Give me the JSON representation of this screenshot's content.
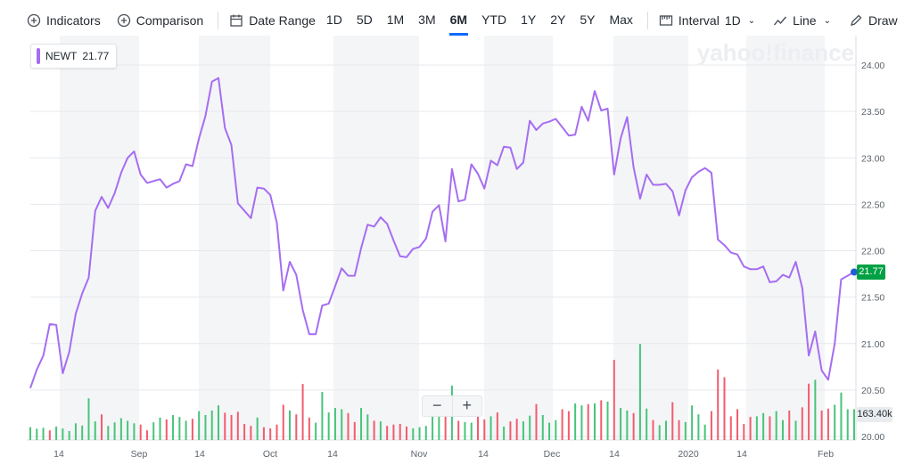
{
  "toolbar": {
    "indicators": "Indicators",
    "comparison": "Comparison",
    "date_range": "Date Range",
    "ranges": [
      "1D",
      "5D",
      "1M",
      "3M",
      "6M",
      "YTD",
      "1Y",
      "2Y",
      "5Y",
      "Max"
    ],
    "active_range": "6M",
    "interval_label": "Interval",
    "interval_value": "1D",
    "line_label": "Line",
    "draw_label": "Draw"
  },
  "legend": {
    "symbol": "NEWT",
    "value": "21.77"
  },
  "watermark": "yahoo!finance",
  "price_badge": "21.77",
  "volume_badge": "163.40k",
  "zoom": {
    "minus": "−",
    "plus": "+"
  },
  "colors": {
    "line": "#a66df2",
    "volume_up": "#48c47a",
    "volume_down": "#f25c6e",
    "price_badge": "#00a144",
    "accent": "#0f69ff"
  },
  "chart_data": {
    "type": "line",
    "series": [
      {
        "values": [
          20.52,
          20.72,
          20.87,
          21.21,
          21.2,
          20.68,
          20.91,
          21.32,
          21.54,
          21.71,
          22.43,
          22.58,
          22.46,
          22.62,
          22.84,
          23.0,
          23.07,
          22.82,
          22.73,
          22.75,
          22.77,
          22.68,
          22.72,
          22.75,
          22.93,
          22.91,
          23.21,
          23.45,
          23.82,
          23.86,
          23.32,
          23.14,
          22.51,
          22.43,
          22.35,
          22.68,
          22.67,
          22.6,
          22.3,
          21.57,
          21.88,
          21.74,
          21.36,
          21.1,
          21.1,
          21.41,
          21.43,
          21.62,
          21.81,
          21.73,
          21.73,
          22.03,
          22.28,
          22.26,
          22.36,
          22.29,
          22.11,
          21.94,
          21.93,
          22.02,
          22.04,
          22.13,
          22.42,
          22.49,
          22.1,
          22.88,
          22.53,
          22.55,
          22.93,
          22.83,
          22.67,
          22.97,
          22.92,
          23.12,
          23.11,
          22.88,
          22.95,
          23.4,
          23.3,
          23.37,
          23.39,
          23.42,
          23.33,
          23.24,
          23.25,
          23.55,
          23.4,
          23.72,
          23.51,
          23.53,
          22.82,
          23.21,
          23.44,
          22.9,
          22.56,
          22.82,
          22.71,
          22.71,
          22.72,
          22.64,
          22.38,
          22.65,
          22.79,
          22.85,
          22.89,
          22.84,
          22.12,
          22.06,
          21.98,
          21.96,
          21.83,
          21.8,
          21.8,
          21.83,
          21.66,
          21.67,
          21.74,
          21.71,
          21.88,
          21.6,
          20.87,
          21.13,
          20.71,
          20.61,
          21.0,
          21.69,
          21.73,
          21.77
        ],
        "volume_k": [
          40,
          35,
          38,
          30,
          42,
          36,
          28,
          52,
          45,
          130,
          58,
          80,
          44,
          55,
          68,
          60,
          52,
          48,
          30,
          55,
          70,
          64,
          78,
          72,
          60,
          66,
          90,
          78,
          92,
          108,
          85,
          78,
          88,
          50,
          44,
          70,
          40,
          36,
          48,
          110,
          92,
          80,
          175,
          70,
          54,
          150,
          86,
          100,
          96,
          84,
          56,
          100,
          80,
          60,
          58,
          44,
          48,
          50,
          42,
          36,
          40,
          44,
          82,
          74,
          96,
          170,
          60,
          56,
          54,
          80,
          64,
          74,
          86,
          42,
          58,
          66,
          58,
          76,
          112,
          78,
          54,
          62,
          96,
          90,
          114,
          108,
          112,
          114,
          124,
          120,
          250,
          100,
          92,
          84,
          300,
          98,
          62,
          46,
          60,
          118,
          62,
          56,
          108,
          80,
          48,
          90,
          220,
          196,
          74,
          96,
          50,
          72,
          74,
          84,
          74,
          90,
          62,
          92,
          60,
          102,
          176,
          188,
          92,
          98,
          110,
          148,
          96,
          96
        ],
        "volume_up": [
          1,
          1,
          1,
          0,
          1,
          1,
          1,
          1,
          1,
          1,
          1,
          0,
          1,
          1,
          1,
          1,
          1,
          0,
          0,
          1,
          1,
          0,
          1,
          1,
          1,
          0,
          1,
          1,
          1,
          1,
          0,
          0,
          0,
          0,
          0,
          1,
          0,
          0,
          0,
          0,
          1,
          0,
          0,
          0,
          1,
          1,
          1,
          1,
          1,
          0,
          0,
          1,
          1,
          0,
          1,
          0,
          0,
          0,
          0,
          1,
          1,
          1,
          1,
          1,
          0,
          1,
          0,
          1,
          1,
          0,
          0,
          1,
          0,
          1,
          0,
          0,
          1,
          1,
          0,
          1,
          1,
          1,
          0,
          0,
          1,
          1,
          0,
          1,
          0,
          1,
          0,
          1,
          1,
          0,
          1,
          1,
          0,
          1,
          1,
          0,
          0,
          1,
          1,
          1,
          1,
          0,
          0,
          0,
          0,
          0,
          0,
          0,
          1,
          1,
          0,
          1,
          1,
          0,
          1,
          0,
          0,
          1,
          0,
          0,
          1,
          1,
          1,
          1
        ]
      }
    ],
    "x_tick_labels": [
      "14",
      "Sep",
      "14",
      "Oct",
      "14",
      "Nov",
      "14",
      "Dec",
      "14",
      "2020",
      "14",
      "Feb"
    ],
    "y_tick_labels": [
      "20.00",
      "20.50",
      "21.00",
      "21.50",
      "22.00",
      "22.50",
      "23.00",
      "23.50",
      "24.00"
    ],
    "ylim": [
      20.0,
      24.0
    ],
    "grid": true
  }
}
